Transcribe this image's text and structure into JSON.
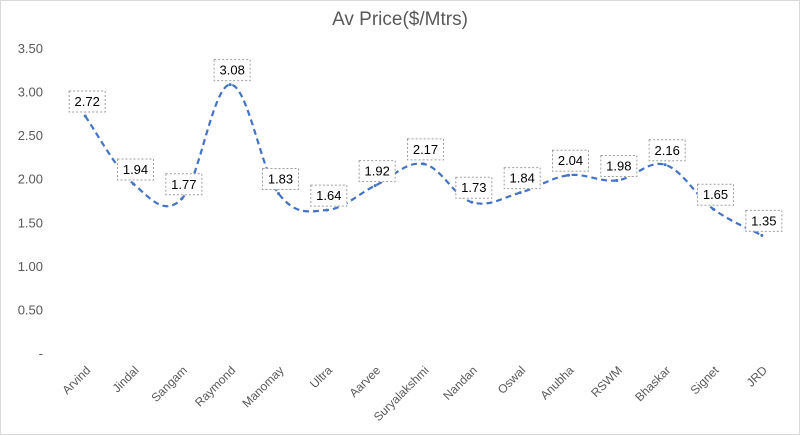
{
  "chart_data": {
    "type": "line",
    "title": "Av Price($/Mtrs)",
    "categories": [
      "Arvind",
      "Jindal",
      "Sangam",
      "Raymond",
      "Manomay",
      "Ultra",
      "Aarvee",
      "Suryalakshmi",
      "Nandan",
      "Oswal",
      "Anubha",
      "RSWM",
      "Bhaskar",
      "Signet",
      "JRD"
    ],
    "series": [
      {
        "values": [
          2.72,
          1.94,
          1.77,
          3.08,
          1.83,
          1.64,
          1.92,
          2.17,
          1.73,
          1.84,
          2.04,
          1.98,
          2.16,
          1.65,
          1.35
        ],
        "labels": [
          "2.72",
          "1.94",
          "1.77",
          "3.08",
          "1.83",
          "1.64",
          "1.92",
          "2.17",
          "1.73",
          "1.84",
          "2.04",
          "1.98",
          "2.16",
          "1.65",
          "1.35"
        ],
        "color": "#4472c4",
        "line_style": "dashed"
      }
    ],
    "ylim": [
      0,
      3.5
    ],
    "yticks": [
      0,
      0.5,
      1.0,
      1.5,
      2.0,
      2.5,
      3.0,
      3.5
    ],
    "ytick_labels": [
      "-",
      "0.50",
      "1.00",
      "1.50",
      "2.00",
      "2.50",
      "3.00",
      "3.50"
    ],
    "grid": false,
    "legend": "none"
  }
}
